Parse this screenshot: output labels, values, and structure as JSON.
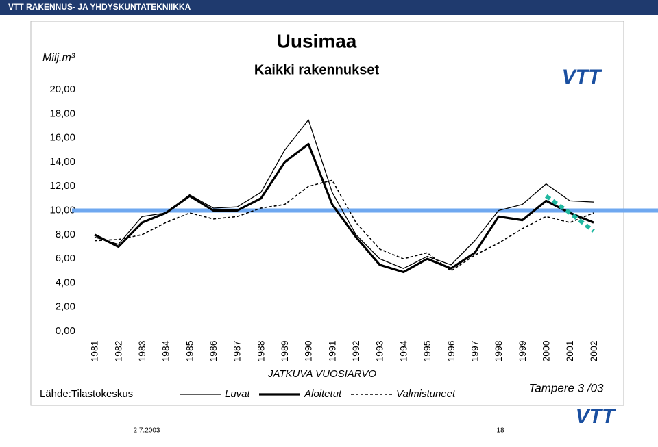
{
  "header": "VTT RAKENNUS- JA YHDYSKUNTATEKNIIKKA",
  "footer": {
    "date": "2.7.2003",
    "page": "18"
  },
  "logo_text": "VTT",
  "chart_data": {
    "type": "line",
    "title": "Uusimaa",
    "subtitle": "Kaikki rakennukset",
    "y_label": "Milj.m³",
    "legend_title": "JATKUVA VUOSIARVO",
    "source": "Lähde:Tilastokeskus",
    "note": "Tampere 3 /03",
    "categories": [
      "1981",
      "1982",
      "1983",
      "1984",
      "1985",
      "1986",
      "1987",
      "1988",
      "1989",
      "1990",
      "1991",
      "1992",
      "1993",
      "1994",
      "1995",
      "1996",
      "1997",
      "1998",
      "1999",
      "2000",
      "2001",
      "2002"
    ],
    "series": [
      {
        "name": "Luvat",
        "color": "#000000",
        "style": "thin",
        "values": [
          7.8,
          7.2,
          9.5,
          9.8,
          11.3,
          10.2,
          10.3,
          11.5,
          15.0,
          17.5,
          11.5,
          8.0,
          6.0,
          5.2,
          6.2,
          5.5,
          7.5,
          10.0,
          10.5,
          12.2,
          10.8,
          10.7
        ]
      },
      {
        "name": "Aloitetut",
        "color": "#000000",
        "style": "thick",
        "values": [
          8.0,
          7.0,
          9.0,
          9.8,
          11.2,
          10.0,
          10.0,
          11.0,
          14.0,
          15.5,
          10.5,
          7.8,
          5.5,
          4.9,
          6.0,
          5.2,
          6.5,
          9.5,
          9.2,
          10.8,
          9.8,
          9.0
        ]
      },
      {
        "name": "Valmistuneet",
        "color": "#000000",
        "style": "dashed",
        "values": [
          7.5,
          7.6,
          8.0,
          9.0,
          9.8,
          9.3,
          9.5,
          10.2,
          10.5,
          12.0,
          12.5,
          9.0,
          6.8,
          6.0,
          6.5,
          5.0,
          6.3,
          7.3,
          8.5,
          9.5,
          9.0,
          9.8
        ]
      }
    ],
    "reference_line": {
      "value": 10,
      "color": "#6fa8f0"
    },
    "trend": {
      "color": "#1fb8a0",
      "values": [
        null,
        null,
        null,
        null,
        null,
        null,
        null,
        null,
        null,
        null,
        null,
        null,
        null,
        null,
        null,
        null,
        null,
        null,
        null,
        11.2,
        9.8,
        8.3
      ]
    },
    "ylim": [
      0,
      20
    ],
    "yticks": [
      {
        "value": 0,
        "label": "0,00"
      },
      {
        "value": 2,
        "label": "2,00"
      },
      {
        "value": 4,
        "label": "4,00"
      },
      {
        "value": 6,
        "label": "6,00"
      },
      {
        "value": 8,
        "label": "8,00"
      },
      {
        "value": 10,
        "label": "10,00"
      },
      {
        "value": 12,
        "label": "12,00"
      },
      {
        "value": 14,
        "label": "14,00"
      },
      {
        "value": 16,
        "label": "16,00"
      },
      {
        "value": 18,
        "label": "18,00"
      },
      {
        "value": 20,
        "label": "20,00"
      }
    ]
  }
}
